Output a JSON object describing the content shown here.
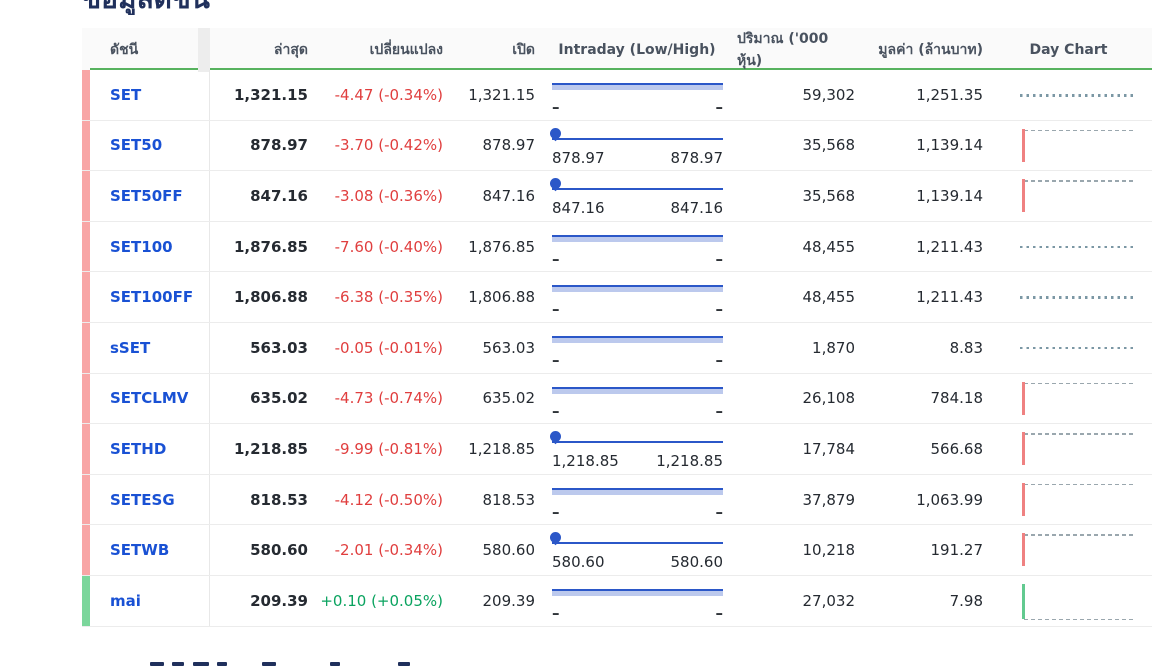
{
  "page": {
    "title": "ข้อมูลดัชนี"
  },
  "appearance": {
    "link_blue": "#1951d4",
    "negative_red": "#e03e3e",
    "positive_green": "#0aa35f",
    "accent_down_pink": "#f8a5a5",
    "accent_up_green": "#7bd69b",
    "header_underline_green": "#57b25e",
    "intraday_blue": "#2b57c8",
    "intraday_band_light": "#bcc9ed",
    "daychart_gray": "#7b97a4",
    "daychart_spike_red": "#ef8181",
    "daychart_spike_green": "#62ca90"
  },
  "table": {
    "headers": [
      "ดัชนี",
      "ล่าสุด",
      "เปลี่ยนแปลง",
      "เปิด",
      "Intraday (Low/High)",
      "ปริมาณ ('000 หุ้น)",
      "มูลค่า (ล้านบาท)",
      "Day Chart"
    ],
    "rows": [
      {
        "name": "SET",
        "last": "1,321.15",
        "change": "-4.47 (-0.34%)",
        "direction": "down",
        "open": "1,321.15",
        "intraday": {
          "style": "band",
          "low": "–",
          "high": "–"
        },
        "volume": "59,302",
        "value": "1,251.35",
        "day_chart": "flat"
      },
      {
        "name": "SET50",
        "last": "878.97",
        "change": "-3.70 (-0.42%)",
        "direction": "down",
        "open": "878.97",
        "intraday": {
          "style": "slider",
          "low": "878.97",
          "high": "878.97"
        },
        "volume": "35,568",
        "value": "1,139.14",
        "day_chart": "down-spike"
      },
      {
        "name": "SET50FF",
        "last": "847.16",
        "change": "-3.08 (-0.36%)",
        "direction": "down",
        "open": "847.16",
        "intraday": {
          "style": "slider",
          "low": "847.16",
          "high": "847.16"
        },
        "volume": "35,568",
        "value": "1,139.14",
        "day_chart": "down-spike"
      },
      {
        "name": "SET100",
        "last": "1,876.85",
        "change": "-7.60 (-0.40%)",
        "direction": "down",
        "open": "1,876.85",
        "intraday": {
          "style": "band",
          "low": "–",
          "high": "–"
        },
        "volume": "48,455",
        "value": "1,211.43",
        "day_chart": "flat"
      },
      {
        "name": "SET100FF",
        "last": "1,806.88",
        "change": "-6.38 (-0.35%)",
        "direction": "down",
        "open": "1,806.88",
        "intraday": {
          "style": "band",
          "low": "–",
          "high": "–"
        },
        "volume": "48,455",
        "value": "1,211.43",
        "day_chart": "flat"
      },
      {
        "name": "sSET",
        "last": "563.03",
        "change": "-0.05 (-0.01%)",
        "direction": "down",
        "open": "563.03",
        "intraday": {
          "style": "band",
          "low": "–",
          "high": "–"
        },
        "volume": "1,870",
        "value": "8.83",
        "day_chart": "flat"
      },
      {
        "name": "SETCLMV",
        "last": "635.02",
        "change": "-4.73 (-0.74%)",
        "direction": "down",
        "open": "635.02",
        "intraday": {
          "style": "band",
          "low": "–",
          "high": "–"
        },
        "volume": "26,108",
        "value": "784.18",
        "day_chart": "down-spike"
      },
      {
        "name": "SETHD",
        "last": "1,218.85",
        "change": "-9.99 (-0.81%)",
        "direction": "down",
        "open": "1,218.85",
        "intraday": {
          "style": "slider",
          "low": "1,218.85",
          "high": "1,218.85"
        },
        "volume": "17,784",
        "value": "566.68",
        "day_chart": "down-spike"
      },
      {
        "name": "SETESG",
        "last": "818.53",
        "change": "-4.12 (-0.50%)",
        "direction": "down",
        "open": "818.53",
        "intraday": {
          "style": "band",
          "low": "–",
          "high": "–"
        },
        "volume": "37,879",
        "value": "1,063.99",
        "day_chart": "down-spike"
      },
      {
        "name": "SETWB",
        "last": "580.60",
        "change": "-2.01 (-0.34%)",
        "direction": "down",
        "open": "580.60",
        "intraday": {
          "style": "slider",
          "low": "580.60",
          "high": "580.60"
        },
        "volume": "10,218",
        "value": "191.27",
        "day_chart": "down-spike"
      },
      {
        "name": "mai",
        "last": "209.39",
        "change": "+0.10 (+0.05%)",
        "direction": "up",
        "open": "209.39",
        "intraday": {
          "style": "band",
          "low": "–",
          "high": "–"
        },
        "volume": "27,032",
        "value": "7.98",
        "day_chart": "up-spike"
      }
    ]
  }
}
